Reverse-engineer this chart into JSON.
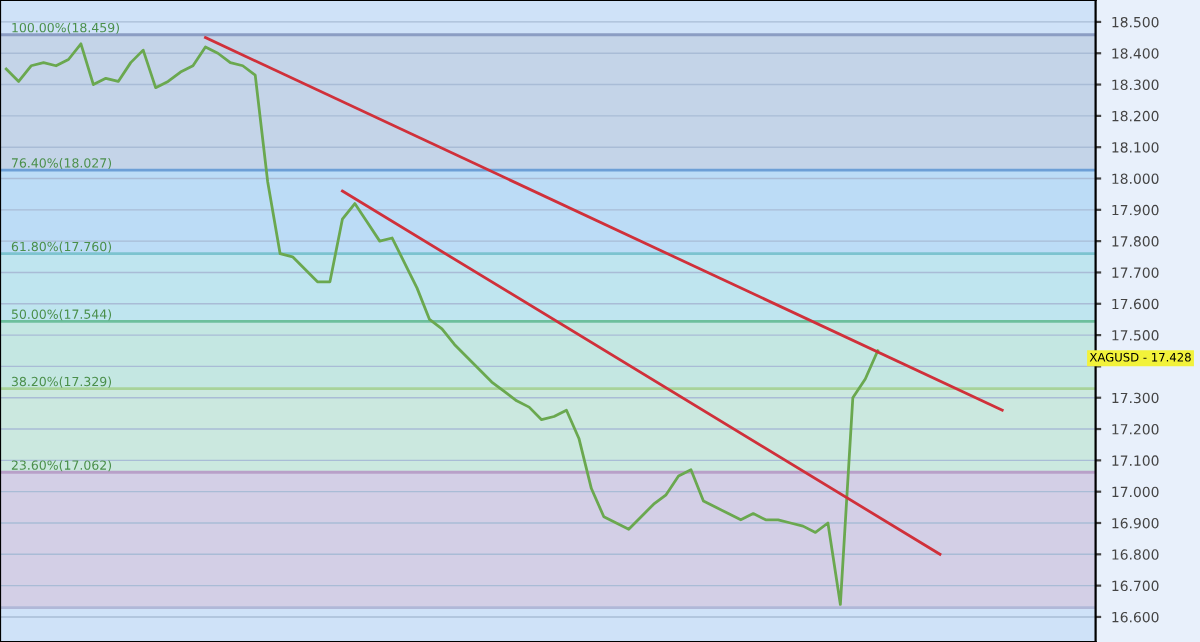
{
  "chart_data": {
    "type": "line",
    "ylim": [
      16.52,
      18.57
    ],
    "categories": [
      null,
      null,
      null,
      null,
      null,
      null,
      null,
      null,
      null,
      null,
      null,
      null,
      null,
      null,
      null,
      null,
      null,
      null,
      null,
      null,
      null,
      null,
      null,
      null,
      null,
      null,
      null,
      null,
      null,
      null,
      null,
      null,
      null,
      null,
      null,
      null,
      null,
      null,
      null,
      null,
      null,
      null,
      null,
      null,
      null,
      null,
      null,
      null,
      null,
      null,
      null,
      null,
      null,
      null,
      null,
      null,
      null,
      null,
      null,
      null,
      null,
      null,
      null,
      null,
      null,
      null,
      null,
      null,
      null,
      null,
      null,
      null,
      null,
      null,
      null,
      null,
      null,
      null,
      null,
      null,
      null,
      null,
      null,
      null,
      null,
      null,
      null,
      null
    ],
    "yticks": [
      {
        "value": 16.6,
        "label": "16.600"
      },
      {
        "value": 16.7,
        "label": "16.700"
      },
      {
        "value": 16.8,
        "label": "16.800"
      },
      {
        "value": 16.9,
        "label": "16.900"
      },
      {
        "value": 17.0,
        "label": "17.000"
      },
      {
        "value": 17.1,
        "label": "17.100"
      },
      {
        "value": 17.2,
        "label": "17.200"
      },
      {
        "value": 17.3,
        "label": "17.300"
      },
      {
        "value": 17.4,
        "label": null
      },
      {
        "value": 17.5,
        "label": "17.500"
      },
      {
        "value": 17.6,
        "label": "17.600"
      },
      {
        "value": 17.7,
        "label": "17.700"
      },
      {
        "value": 17.8,
        "label": "17.800"
      },
      {
        "value": 17.9,
        "label": "17.900"
      },
      {
        "value": 18.0,
        "label": "18.000"
      },
      {
        "value": 18.1,
        "label": "18.100"
      },
      {
        "value": 18.2,
        "label": "18.200"
      },
      {
        "value": 18.3,
        "label": "18.300"
      },
      {
        "value": 18.4,
        "label": "18.400"
      },
      {
        "value": 18.5,
        "label": "18.500"
      }
    ],
    "grid": "y",
    "legend": false,
    "series": [
      {
        "color": "#6aa84f",
        "values": [
          18.35,
          18.31,
          18.36,
          18.37,
          18.36,
          18.38,
          18.43,
          18.3,
          18.32,
          18.31,
          18.37,
          18.41,
          18.29,
          18.31,
          18.34,
          18.36,
          18.42,
          18.4,
          18.37,
          18.36,
          18.33,
          17.99,
          17.76,
          17.75,
          17.71,
          17.67,
          17.67,
          17.87,
          17.92,
          17.86,
          17.8,
          17.81,
          17.73,
          17.65,
          17.55,
          17.52,
          17.47,
          17.43,
          17.39,
          17.35,
          17.32,
          17.29,
          17.27,
          17.23,
          17.24,
          17.26,
          17.17,
          17.01,
          16.92,
          16.9,
          16.88,
          16.92,
          16.96,
          16.99,
          17.05,
          17.07,
          16.97,
          16.95,
          16.93,
          16.91,
          16.93,
          16.91,
          16.91,
          16.9,
          16.89,
          16.87,
          16.9,
          16.64,
          17.3,
          17.36,
          17.45,
          null,
          null,
          null,
          null,
          null,
          null,
          null,
          null,
          null,
          null,
          null,
          null,
          null,
          null,
          null,
          null,
          null
        ]
      },
      {
        "color": "#d0303a",
        "values": [
          null,
          null,
          null,
          null,
          null,
          null,
          null,
          null,
          null,
          null,
          null,
          null,
          null,
          null,
          null,
          null,
          18.45,
          null,
          null,
          null,
          null,
          null,
          null,
          null,
          null,
          null,
          null,
          null,
          null,
          null,
          null,
          null,
          null,
          null,
          null,
          null,
          null,
          null,
          null,
          null,
          null,
          null,
          null,
          null,
          null,
          null,
          null,
          null,
          null,
          null,
          null,
          null,
          null,
          null,
          null,
          null,
          null,
          null,
          null,
          null,
          null,
          null,
          null,
          null,
          null,
          null,
          null,
          null,
          null,
          null,
          null,
          null,
          null,
          null,
          null,
          null,
          null,
          null,
          null,
          null,
          17.26,
          null,
          null,
          null,
          null,
          null,
          null,
          null
        ]
      },
      {
        "color": "#d0303a",
        "values": [
          null,
          null,
          null,
          null,
          null,
          null,
          null,
          null,
          null,
          null,
          null,
          null,
          null,
          null,
          null,
          null,
          null,
          null,
          null,
          null,
          null,
          null,
          null,
          null,
          null,
          null,
          null,
          17.96,
          null,
          null,
          null,
          null,
          null,
          null,
          null,
          null,
          null,
          null,
          null,
          null,
          null,
          null,
          null,
          null,
          null,
          null,
          null,
          null,
          null,
          null,
          null,
          null,
          null,
          null,
          null,
          null,
          null,
          null,
          null,
          null,
          null,
          null,
          null,
          null,
          null,
          null,
          null,
          null,
          null,
          null,
          null,
          null,
          null,
          null,
          null,
          16.8,
          null,
          null,
          null,
          null,
          null,
          null,
          null,
          null,
          null,
          null,
          null,
          null
        ]
      }
    ],
    "bands": [
      {
        "axis": "y",
        "from": 18.027,
        "to": 18.459,
        "color": "#c4d4e8"
      },
      {
        "axis": "y",
        "from": 17.76,
        "to": 18.027,
        "color": "#bcdcf6"
      },
      {
        "axis": "y",
        "from": 17.544,
        "to": 17.76,
        "color": "#bfe5ef"
      },
      {
        "axis": "y",
        "from": 17.329,
        "to": 17.544,
        "color": "#c4e7e2"
      },
      {
        "axis": "y",
        "from": 17.062,
        "to": 17.329,
        "color": "#cbe8df"
      },
      {
        "axis": "y",
        "from": 16.63,
        "to": 17.062,
        "color": "#d3cfe6"
      }
    ],
    "ref_lines": [
      {
        "axis": "y",
        "value": 18.459,
        "label": "100.00%(18.459)",
        "color": "#8b9dc3"
      },
      {
        "axis": "y",
        "value": 18.027,
        "label": "76.40%(18.027)",
        "color": "#6d9fd6"
      },
      {
        "axis": "y",
        "value": 17.76,
        "label": "61.80%(17.760)",
        "color": "#7cc3cf"
      },
      {
        "axis": "y",
        "value": 17.544,
        "label": "50.00%(17.544)",
        "color": "#6cbf9c"
      },
      {
        "axis": "y",
        "value": 17.329,
        "label": "38.20%(17.329)",
        "color": "#a8d39a"
      },
      {
        "axis": "y",
        "value": 17.062,
        "label": "23.60%(17.062)",
        "color": "#b8a0c8"
      },
      {
        "axis": "y",
        "value": 16.63,
        "color": "#b0b8d8"
      }
    ],
    "annotations": [
      "XAGUSD - 17.428"
    ]
  }
}
